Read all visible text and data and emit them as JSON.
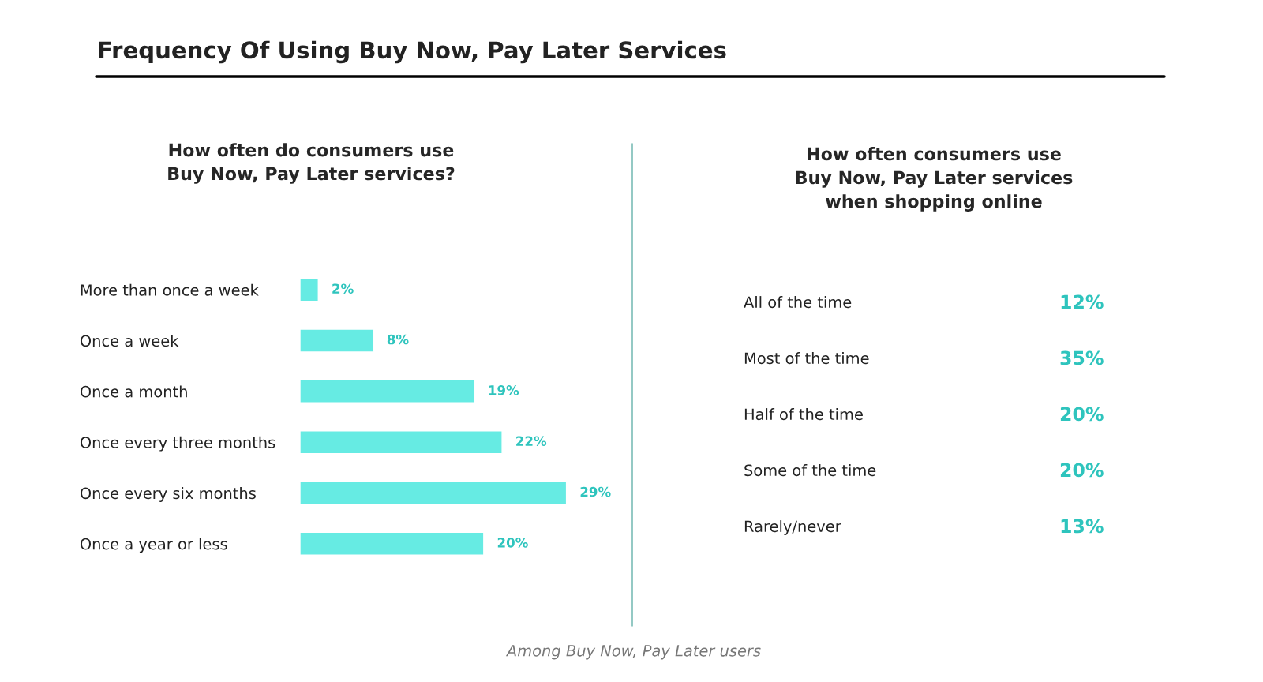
{
  "chart_data": [
    {
      "type": "bar",
      "orientation": "horizontal",
      "title": "Frequency Of Using Buy Now, Pay Later Services",
      "subtitle": "How often do consumers use\nBuy Now, Pay Later services?",
      "categories": [
        "More than once a week",
        "Once a week",
        "Once a month",
        "Once every three months",
        "Once every six months",
        "Once a year or less"
      ],
      "values": [
        2,
        8,
        19,
        22,
        29,
        20
      ],
      "color": "#66ebe3",
      "data_labels": true,
      "value_labels": [
        "2%",
        "8%",
        "19%",
        "22%",
        "29%",
        "20%"
      ],
      "grid": false,
      "legend": false,
      "annotations": [
        "Among Buy Now, Pay Later users"
      ]
    },
    {
      "type": "other",
      "title": "How often consumers use\nBuy Now, Pay Later services\nwhen shopping online",
      "categories": [
        "All of the time",
        "Most of the time",
        "Half of the time",
        "Some of the time",
        "Rarely/never"
      ],
      "color": "#2ec4bd",
      "data_labels": true,
      "value_labels": [
        "12%",
        "35%",
        "20%",
        "20%",
        "13%"
      ]
    }
  ]
}
